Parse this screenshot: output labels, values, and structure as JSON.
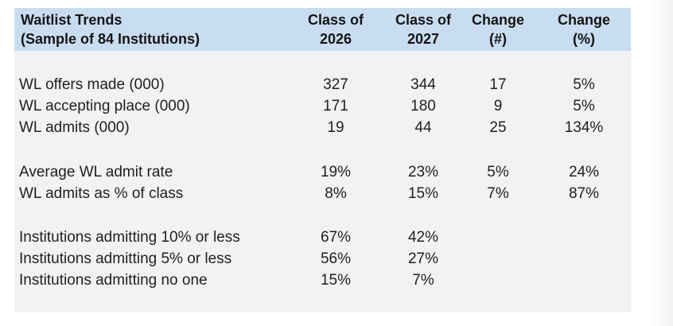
{
  "header": {
    "title_line1": "Waitlist Trends",
    "title_line2": "(Sample of 84 Institutions)",
    "columns": [
      {
        "line1": "Class of",
        "line2": "2026"
      },
      {
        "line1": "Class of",
        "line2": "2027"
      },
      {
        "line1": "Change",
        "line2": "(#)"
      },
      {
        "line1": "Change",
        "line2": "(%)"
      }
    ]
  },
  "rows": [
    {
      "label": "WL offers made (000)",
      "c2026": "327",
      "c2027": "344",
      "change_num": "17",
      "change_pct": "5%"
    },
    {
      "label": "WL accepting place (000)",
      "c2026": "171",
      "c2027": "180",
      "change_num": "9",
      "change_pct": "5%"
    },
    {
      "label": "WL admits (000)",
      "c2026": "19",
      "c2027": "44",
      "change_num": "25",
      "change_pct": "134%"
    },
    {
      "label": "Average WL admit rate",
      "c2026": "19%",
      "c2027": "23%",
      "change_num": "5%",
      "change_pct": "24%"
    },
    {
      "label": "WL admits as % of class",
      "c2026": "8%",
      "c2027": "15%",
      "change_num": "7%",
      "change_pct": "87%"
    },
    {
      "label": "Institutions admitting 10% or less",
      "c2026": "67%",
      "c2027": "42%",
      "change_num": "",
      "change_pct": ""
    },
    {
      "label": "Institutions admitting 5% or less",
      "c2026": "56%",
      "c2027": "27%",
      "change_num": "",
      "change_pct": ""
    },
    {
      "label": "Institutions admitting no one",
      "c2026": "15%",
      "c2027": "7%",
      "change_num": "",
      "change_pct": ""
    }
  ]
}
